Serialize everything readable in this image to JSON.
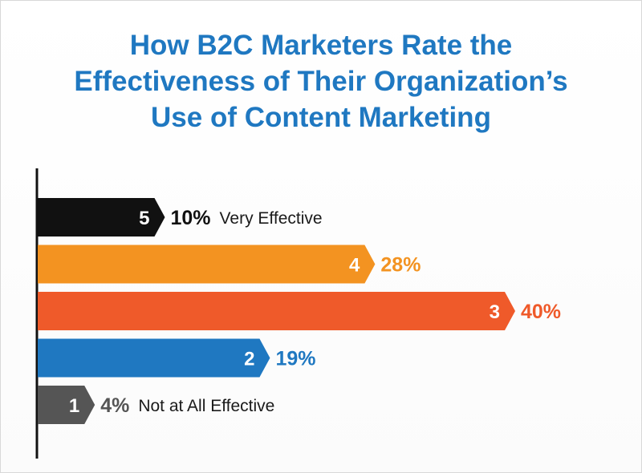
{
  "chart_data": {
    "type": "bar",
    "orientation": "horizontal",
    "title_lines": [
      "How B2C Marketers Rate the",
      "Effectiveness of Their Organization’s",
      "Use of Content Marketing"
    ],
    "series": [
      {
        "values": [
          10,
          28,
          40,
          19,
          4
        ]
      }
    ],
    "categories": [
      "5",
      "4",
      "3",
      "2",
      "1"
    ],
    "percent_labels": [
      "10%",
      "28%",
      "40%",
      "19%",
      "4%"
    ],
    "descriptions": [
      "Very Effective",
      "",
      "",
      "",
      "Not at All Effective"
    ],
    "colors": [
      "#111111",
      "#f39321",
      "#ef5a2a",
      "#1f78c1",
      "#555555"
    ],
    "label_colors": [
      "#111111",
      "#f39321",
      "#ef5a2a",
      "#1f78c1",
      "#555555"
    ],
    "xlim": [
      0,
      40
    ],
    "grid": false,
    "legend": "none"
  }
}
